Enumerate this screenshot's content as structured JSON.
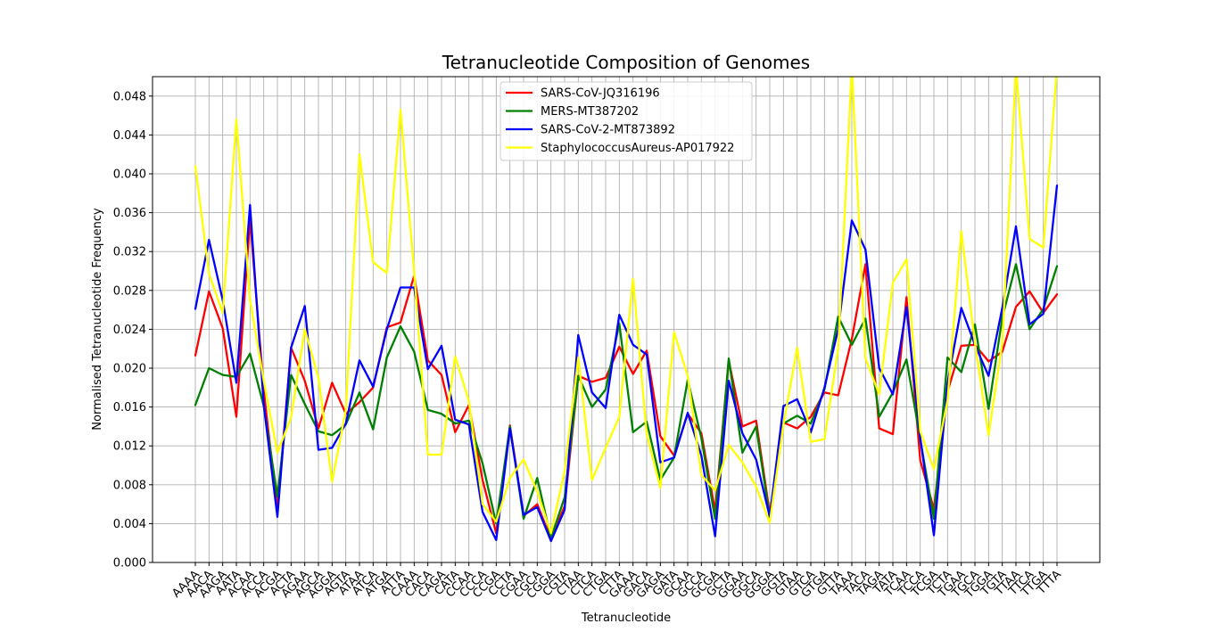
{
  "chart_data": {
    "type": "line",
    "title": "Tetranucleotide Composition of Genomes",
    "xlabel": "Tetranucleotide",
    "ylabel": "Normalised Tetranucleotide Frequency",
    "ylim": [
      0,
      0.05
    ],
    "yticks": [
      "0.000",
      "0.004",
      "0.008",
      "0.012",
      "0.016",
      "0.020",
      "0.024",
      "0.028",
      "0.032",
      "0.036",
      "0.040",
      "0.044",
      "0.048"
    ],
    "grid": true,
    "legend_position": "top-center",
    "categories": [
      "AAAA",
      "AACA",
      "AAGA",
      "AATA",
      "ACAA",
      "ACCA",
      "ACGA",
      "ACTA",
      "AGAA",
      "AGCA",
      "AGGA",
      "AGTA",
      "ATAA",
      "ATCA",
      "ATGA",
      "ATTA",
      "CAAA",
      "CACA",
      "CAGA",
      "CATA",
      "CCAA",
      "CCCA",
      "CCGA",
      "CCTA",
      "CGAA",
      "CGCA",
      "CGGA",
      "CGTA",
      "CTAA",
      "CTCA",
      "CTGA",
      "CTTA",
      "GAAA",
      "GACA",
      "GAGA",
      "GATA",
      "GCAA",
      "GCCA",
      "GCGA",
      "GCTA",
      "GGAA",
      "GGCA",
      "GGGA",
      "GGTA",
      "GTAA",
      "GTCA",
      "GTGA",
      "GTTA",
      "TAAA",
      "TACA",
      "TAGA",
      "TATA",
      "TCAA",
      "TCCA",
      "TCGA",
      "TCTA",
      "TGAA",
      "TGCA",
      "TGGA",
      "TGTA",
      "TTAA",
      "TTCA",
      "TTGA",
      "TTTA"
    ],
    "series": [
      {
        "name": "SARS-CoV-JQ316196",
        "color": "#ff0000",
        "values": [
          0.0213,
          0.0279,
          0.0241,
          0.015,
          0.0354,
          0.0177,
          0.0054,
          0.0221,
          0.0187,
          0.0138,
          0.0185,
          0.0153,
          0.0165,
          0.018,
          0.0242,
          0.0247,
          0.0295,
          0.0208,
          0.0193,
          0.0134,
          0.0162,
          0.0085,
          0.003,
          0.0141,
          0.0048,
          0.006,
          0.0024,
          0.0058,
          0.0192,
          0.0186,
          0.019,
          0.0222,
          0.0194,
          0.0218,
          0.013,
          0.011,
          0.0153,
          0.0133,
          0.0053,
          0.0208,
          0.014,
          0.0146,
          0.005,
          0.0144,
          0.0138,
          0.015,
          0.0175,
          0.0172,
          0.023,
          0.0307,
          0.0138,
          0.0132,
          0.0273,
          0.0105,
          0.0055,
          0.0176,
          0.0223,
          0.0224,
          0.0207,
          0.0217,
          0.0263,
          0.0279,
          0.0257,
          0.0276
        ]
      },
      {
        "name": "MERS-MT387202",
        "color": "#008000",
        "values": [
          0.0162,
          0.02,
          0.0193,
          0.0191,
          0.0215,
          0.0161,
          0.0068,
          0.0193,
          0.0163,
          0.0135,
          0.0131,
          0.0142,
          0.0175,
          0.0137,
          0.0211,
          0.0243,
          0.0217,
          0.0157,
          0.0153,
          0.0143,
          0.0146,
          0.0102,
          0.004,
          0.014,
          0.0045,
          0.0087,
          0.0025,
          0.0067,
          0.0192,
          0.016,
          0.0178,
          0.0246,
          0.0134,
          0.0145,
          0.0085,
          0.0108,
          0.0188,
          0.0128,
          0.0045,
          0.021,
          0.0113,
          0.014,
          0.0046,
          0.0143,
          0.0151,
          0.0143,
          0.0178,
          0.0253,
          0.0224,
          0.0251,
          0.015,
          0.0175,
          0.0209,
          0.0127,
          0.0045,
          0.0211,
          0.0196,
          0.0245,
          0.0158,
          0.0252,
          0.0307,
          0.024,
          0.0261,
          0.0305
        ]
      },
      {
        "name": "SARS-CoV-2-MT873892",
        "color": "#0000ff",
        "values": [
          0.0261,
          0.0332,
          0.027,
          0.0185,
          0.0368,
          0.0162,
          0.0047,
          0.0221,
          0.0264,
          0.0116,
          0.0118,
          0.0143,
          0.0208,
          0.0181,
          0.024,
          0.0283,
          0.0283,
          0.0199,
          0.0223,
          0.0147,
          0.0142,
          0.0052,
          0.0023,
          0.0138,
          0.0049,
          0.0057,
          0.0022,
          0.0054,
          0.0234,
          0.0175,
          0.0159,
          0.0255,
          0.0224,
          0.0214,
          0.0103,
          0.0108,
          0.0154,
          0.011,
          0.0027,
          0.0187,
          0.0133,
          0.0106,
          0.0047,
          0.0161,
          0.0168,
          0.0134,
          0.018,
          0.024,
          0.0352,
          0.0322,
          0.02,
          0.0173,
          0.0263,
          0.0128,
          0.0028,
          0.0185,
          0.0262,
          0.0224,
          0.0192,
          0.0262,
          0.0346,
          0.0245,
          0.0256,
          0.0388
        ]
      },
      {
        "name": "StaphylococcusAureus-AP017922",
        "color": "#ffff00",
        "values": [
          0.0408,
          0.0297,
          0.0257,
          0.0456,
          0.027,
          0.0187,
          0.0113,
          0.0149,
          0.024,
          0.019,
          0.0083,
          0.0157,
          0.042,
          0.0309,
          0.0298,
          0.0466,
          0.0299,
          0.0111,
          0.0111,
          0.0212,
          0.0166,
          0.006,
          0.0042,
          0.0087,
          0.0106,
          0.0073,
          0.003,
          0.0094,
          0.0211,
          0.0085,
          0.0118,
          0.015,
          0.0292,
          0.0132,
          0.0077,
          0.0237,
          0.0192,
          0.009,
          0.0074,
          0.0121,
          0.0103,
          0.0078,
          0.0041,
          0.0142,
          0.0221,
          0.0124,
          0.0127,
          0.022,
          0.051,
          0.021,
          0.0173,
          0.0288,
          0.0312,
          0.0135,
          0.0096,
          0.0167,
          0.0341,
          0.0226,
          0.0131,
          0.0226,
          0.051,
          0.0333,
          0.0324,
          0.051
        ]
      }
    ]
  }
}
